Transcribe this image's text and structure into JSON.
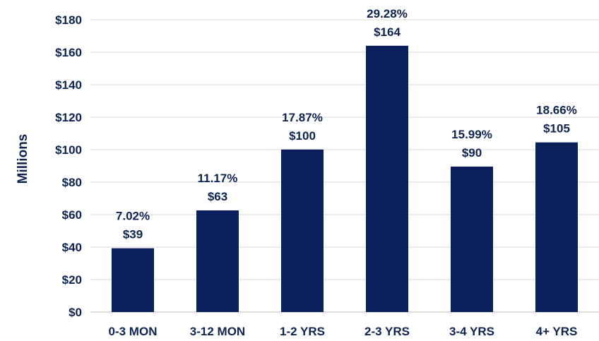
{
  "chart_data": {
    "type": "bar",
    "categories": [
      "0-3 MON",
      "3-12 MON",
      "1-2 YRS",
      "2-3 YRS",
      "3-4 YRS",
      "4+ YRS"
    ],
    "values": [
      39,
      63,
      100,
      164,
      90,
      105
    ],
    "plotted_values": [
      39.3,
      62.6,
      100.1,
      164.0,
      89.6,
      104.5
    ],
    "percent_labels": [
      "7.02%",
      "11.17%",
      "17.87%",
      "29.28%",
      "15.99%",
      "18.66%"
    ],
    "value_labels": [
      "$39",
      "$63",
      "$100",
      "$164",
      "$90",
      "$105"
    ],
    "ylabel": "Millions",
    "ylim": [
      0,
      180
    ],
    "y_ticks": [
      "$0",
      "$20",
      "$40",
      "$60",
      "$80",
      "$100",
      "$120",
      "$140",
      "$160",
      "$180"
    ],
    "grid": true,
    "colors": {
      "bar": "#0a1f5c",
      "grid": "#d9d9d9",
      "text": "#0d2350"
    }
  }
}
